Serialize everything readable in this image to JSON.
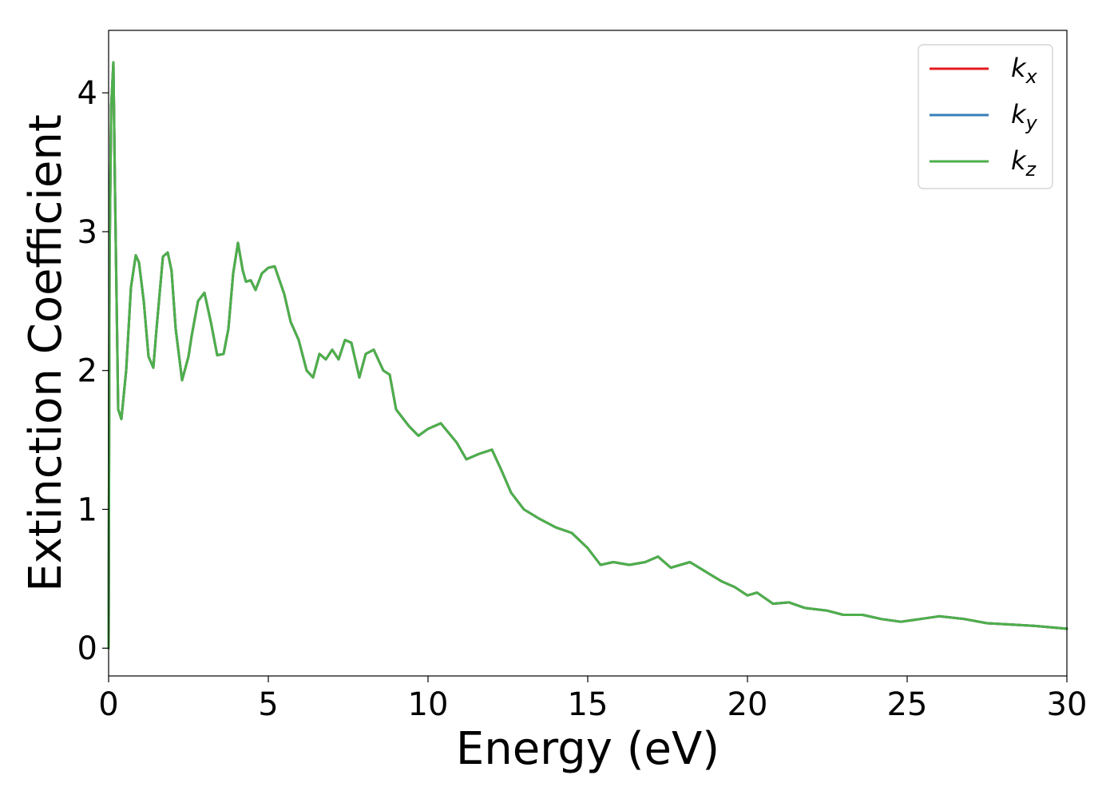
{
  "chart_data": {
    "type": "line",
    "title": "",
    "xlabel": "Energy (eV)",
    "ylabel": "Extinction Coefficient",
    "xlim": [
      0,
      30
    ],
    "ylim": [
      -0.2,
      4.45
    ],
    "xticks": [
      0,
      5,
      10,
      15,
      20,
      25,
      30
    ],
    "yticks": [
      0,
      1,
      2,
      3,
      4
    ],
    "grid": false,
    "legend": {
      "position": "top-right"
    },
    "x": [
      0,
      0.03,
      0.08,
      0.15,
      0.2,
      0.3,
      0.4,
      0.55,
      0.7,
      0.85,
      0.95,
      1.1,
      1.25,
      1.4,
      1.5,
      1.7,
      1.85,
      1.97,
      2.1,
      2.3,
      2.5,
      2.6,
      2.8,
      3.0,
      3.2,
      3.4,
      3.6,
      3.75,
      3.9,
      4.05,
      4.2,
      4.3,
      4.45,
      4.6,
      4.8,
      5.0,
      5.2,
      5.5,
      5.7,
      5.95,
      6.2,
      6.4,
      6.6,
      6.8,
      7.0,
      7.2,
      7.4,
      7.6,
      7.85,
      8.05,
      8.3,
      8.6,
      8.8,
      9.0,
      9.2,
      9.4,
      9.7,
      10.0,
      10.4,
      10.9,
      11.2,
      11.6,
      12.0,
      12.3,
      12.6,
      13.0,
      13.5,
      14.0,
      14.5,
      15.0,
      15.4,
      15.8,
      16.3,
      16.8,
      17.2,
      17.6,
      18.2,
      18.7,
      19.2,
      19.6,
      20.0,
      20.3,
      20.8,
      21.3,
      21.8,
      22.5,
      23.0,
      23.6,
      24.2,
      24.8,
      25.4,
      26.0,
      26.8,
      27.5,
      28.3,
      29.0,
      30.0
    ],
    "series": [
      {
        "name": "k_x",
        "label_base": "k",
        "label_sub": "x",
        "color": "#e41a1c",
        "values": [
          0.0,
          2.8,
          3.9,
          4.22,
          3.3,
          1.72,
          1.65,
          2.0,
          2.6,
          2.83,
          2.78,
          2.5,
          2.1,
          2.02,
          2.3,
          2.82,
          2.85,
          2.72,
          2.3,
          1.93,
          2.1,
          2.25,
          2.5,
          2.56,
          2.35,
          2.11,
          2.12,
          2.3,
          2.7,
          2.92,
          2.72,
          2.64,
          2.65,
          2.58,
          2.7,
          2.74,
          2.75,
          2.55,
          2.35,
          2.22,
          2.0,
          1.95,
          2.12,
          2.08,
          2.15,
          2.08,
          2.22,
          2.2,
          1.95,
          2.12,
          2.15,
          2.0,
          1.97,
          1.72,
          1.66,
          1.6,
          1.53,
          1.58,
          1.62,
          1.48,
          1.36,
          1.4,
          1.43,
          1.28,
          1.12,
          1.0,
          0.93,
          0.87,
          0.83,
          0.72,
          0.6,
          0.62,
          0.6,
          0.62,
          0.66,
          0.58,
          0.62,
          0.55,
          0.48,
          0.44,
          0.38,
          0.4,
          0.32,
          0.33,
          0.29,
          0.27,
          0.24,
          0.24,
          0.21,
          0.19,
          0.21,
          0.23,
          0.21,
          0.18,
          0.17,
          0.16,
          0.14
        ]
      },
      {
        "name": "k_y",
        "label_base": "k",
        "label_sub": "y",
        "color": "#377eb8",
        "values": [
          0.0,
          2.8,
          3.9,
          4.22,
          3.3,
          1.72,
          1.65,
          2.0,
          2.6,
          2.83,
          2.78,
          2.5,
          2.1,
          2.02,
          2.3,
          2.82,
          2.85,
          2.72,
          2.3,
          1.93,
          2.1,
          2.25,
          2.5,
          2.56,
          2.35,
          2.11,
          2.12,
          2.3,
          2.7,
          2.92,
          2.72,
          2.64,
          2.65,
          2.58,
          2.7,
          2.74,
          2.75,
          2.55,
          2.35,
          2.22,
          2.0,
          1.95,
          2.12,
          2.08,
          2.15,
          2.08,
          2.22,
          2.2,
          1.95,
          2.12,
          2.15,
          2.0,
          1.97,
          1.72,
          1.66,
          1.6,
          1.53,
          1.58,
          1.62,
          1.48,
          1.36,
          1.4,
          1.43,
          1.28,
          1.12,
          1.0,
          0.93,
          0.87,
          0.83,
          0.72,
          0.6,
          0.62,
          0.6,
          0.62,
          0.66,
          0.58,
          0.62,
          0.55,
          0.48,
          0.44,
          0.38,
          0.4,
          0.32,
          0.33,
          0.29,
          0.27,
          0.24,
          0.24,
          0.21,
          0.19,
          0.21,
          0.23,
          0.21,
          0.18,
          0.17,
          0.16,
          0.14
        ]
      },
      {
        "name": "k_z",
        "label_base": "k",
        "label_sub": "z",
        "color": "#4daf4a",
        "values": [
          0.0,
          2.8,
          3.9,
          4.22,
          3.3,
          1.72,
          1.65,
          2.0,
          2.6,
          2.83,
          2.78,
          2.5,
          2.1,
          2.02,
          2.3,
          2.82,
          2.85,
          2.72,
          2.3,
          1.93,
          2.1,
          2.25,
          2.5,
          2.56,
          2.35,
          2.11,
          2.12,
          2.3,
          2.7,
          2.92,
          2.72,
          2.64,
          2.65,
          2.58,
          2.7,
          2.74,
          2.75,
          2.55,
          2.35,
          2.22,
          2.0,
          1.95,
          2.12,
          2.08,
          2.15,
          2.08,
          2.22,
          2.2,
          1.95,
          2.12,
          2.15,
          2.0,
          1.97,
          1.72,
          1.66,
          1.6,
          1.53,
          1.58,
          1.62,
          1.48,
          1.36,
          1.4,
          1.43,
          1.28,
          1.12,
          1.0,
          0.93,
          0.87,
          0.83,
          0.72,
          0.6,
          0.62,
          0.6,
          0.62,
          0.66,
          0.58,
          0.62,
          0.55,
          0.48,
          0.44,
          0.38,
          0.4,
          0.32,
          0.33,
          0.29,
          0.27,
          0.24,
          0.24,
          0.21,
          0.19,
          0.21,
          0.23,
          0.21,
          0.18,
          0.17,
          0.16,
          0.14
        ]
      }
    ]
  }
}
